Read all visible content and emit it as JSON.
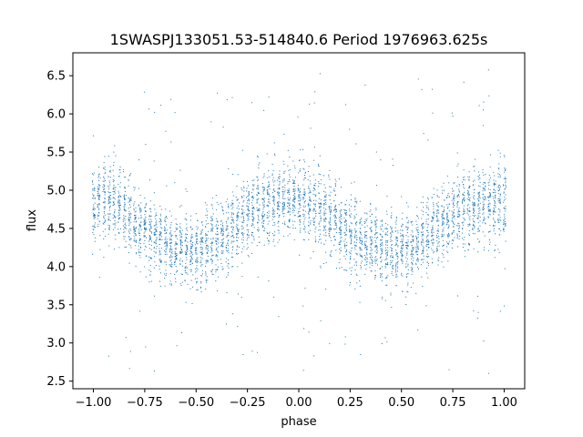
{
  "chart_data": {
    "type": "scatter",
    "title": "1SWASPJ133051.53-514840.6 Period 1976963.625s",
    "xlabel": "phase",
    "ylabel": "flux",
    "xlim": [
      -1.1,
      1.1
    ],
    "ylim": [
      2.4,
      6.8
    ],
    "x_ticks": [
      -1.0,
      -0.75,
      -0.5,
      -0.25,
      0.0,
      0.25,
      0.5,
      0.75,
      1.0
    ],
    "x_tick_labels": [
      "−1.00",
      "−0.75",
      "−0.50",
      "−0.25",
      "0.00",
      "0.25",
      "0.50",
      "0.75",
      "1.00"
    ],
    "y_ticks": [
      2.5,
      3.0,
      3.5,
      4.0,
      4.5,
      5.0,
      5.5,
      6.0,
      6.5
    ],
    "y_tick_labels": [
      "2.5",
      "3.0",
      "3.5",
      "4.0",
      "4.5",
      "5.0",
      "5.5",
      "6.0",
      "6.5"
    ],
    "grid": false,
    "legend": "none",
    "point_color": "#1f77b4",
    "series": [
      {
        "x_range": [
          -1.0,
          1.0
        ],
        "column_count": 81,
        "points_per_column": 55,
        "mean_flux_curve": {
          "phase": [
            -1.0,
            -0.9,
            -0.8,
            -0.7,
            -0.6,
            -0.5,
            -0.4,
            -0.3,
            -0.2,
            -0.1,
            0.0,
            0.1,
            0.2,
            0.3,
            0.4,
            0.5,
            0.6,
            0.7,
            0.8,
            0.9,
            1.0
          ],
          "flux": [
            4.85,
            4.9,
            4.6,
            4.35,
            4.25,
            4.2,
            4.35,
            4.55,
            4.75,
            4.85,
            4.9,
            4.75,
            4.55,
            4.35,
            4.25,
            4.2,
            4.35,
            4.55,
            4.75,
            4.85,
            4.85
          ]
        },
        "scatter_width": 0.45,
        "outlier_range": [
          2.6,
          6.6
        ]
      }
    ]
  }
}
